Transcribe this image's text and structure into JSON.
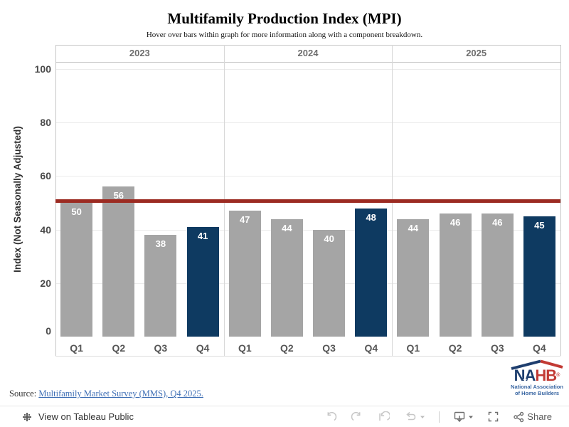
{
  "chart_data": {
    "type": "bar",
    "title": "Multifamily Production Index (MPI)",
    "subtitle": "Hover over bars within graph for more information along with a component breakdown.",
    "ylabel": "Index (Not Seasonally Adjusted)",
    "yticks": [
      0,
      20,
      40,
      60,
      80,
      100
    ],
    "ylim": [
      0,
      103
    ],
    "grid": "horizontal",
    "legend": "none",
    "reference_line": {
      "value": 50,
      "color": "#9c2b22"
    },
    "bar_color_default": "#a5a5a5",
    "bar_color_q4": "#0e3a61",
    "groups": [
      {
        "year": "2023",
        "categories": [
          "Q1",
          "Q2",
          "Q3",
          "Q4"
        ],
        "values": [
          50,
          56,
          38,
          41
        ]
      },
      {
        "year": "2024",
        "categories": [
          "Q1",
          "Q2",
          "Q3",
          "Q4"
        ],
        "values": [
          47,
          44,
          40,
          48
        ]
      },
      {
        "year": "2025",
        "categories": [
          "Q1",
          "Q2",
          "Q3",
          "Q4"
        ],
        "values": [
          44,
          46,
          46,
          45
        ]
      }
    ]
  },
  "source": {
    "label": "Source:",
    "link": "Multifamily Market Survey (MMS), Q4 2025.",
    "link_color": "#3f6fb5"
  },
  "logo": {
    "na": "NA",
    "hb": "HB",
    "reg": "®",
    "sub_line1": "National Association",
    "sub_line2": "of Home Builders"
  },
  "toolbar": {
    "view_label": "View on Tableau Public",
    "share_label": "Share"
  }
}
